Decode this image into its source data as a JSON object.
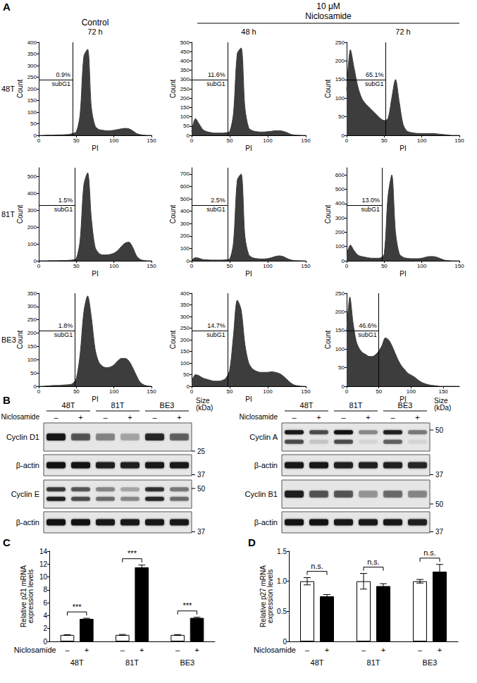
{
  "figure": {
    "panels": [
      "A",
      "B",
      "C",
      "D"
    ],
    "control_header": "Control",
    "dose_header": "10 μM",
    "treatment_header": "Niclosamide",
    "time_headers": [
      "72 h",
      "48 h",
      "72 h"
    ],
    "row_labels": [
      "48T",
      "81T",
      "BE3"
    ]
  },
  "chart_data": [
    {
      "type": "area",
      "x_label": "PI",
      "y_label": "Count",
      "color": "#3d3d3d",
      "gate_x": 45,
      "annotations": [
        "0.9%",
        "subG1"
      ],
      "x": [
        0,
        5,
        10,
        15,
        20,
        25,
        30,
        35,
        40,
        45,
        50,
        55,
        60,
        65,
        70,
        75,
        80,
        85,
        90,
        95,
        100,
        105,
        110,
        115,
        120,
        125,
        130,
        135,
        140,
        145,
        150
      ],
      "values": [
        0,
        0,
        1,
        1,
        1,
        2,
        2,
        3,
        4,
        8,
        15,
        90,
        340,
        370,
        120,
        40,
        25,
        22,
        20,
        20,
        22,
        25,
        28,
        30,
        28,
        20,
        8,
        3,
        1,
        0,
        0
      ],
      "xlim": [
        0,
        150
      ],
      "xticks": [
        0,
        50,
        100,
        150
      ],
      "ylim": [
        0,
        400
      ],
      "yticks": [
        0,
        50,
        100,
        150,
        200,
        250,
        300,
        350,
        400
      ]
    },
    {
      "type": "area",
      "x_label": "PI",
      "y_label": "Count",
      "color": "#3d3d3d",
      "gate_x": 47,
      "annotations": [
        "11.6%",
        "subG1"
      ],
      "x": [
        0,
        5,
        10,
        15,
        20,
        25,
        30,
        35,
        40,
        45,
        50,
        55,
        60,
        65,
        70,
        75,
        80,
        85,
        90,
        95,
        100,
        105,
        110,
        115,
        120,
        125,
        130,
        135,
        140,
        145,
        150
      ],
      "values": [
        20,
        90,
        60,
        30,
        20,
        15,
        12,
        12,
        12,
        14,
        20,
        120,
        440,
        470,
        150,
        40,
        25,
        20,
        18,
        18,
        20,
        22,
        25,
        25,
        22,
        15,
        6,
        2,
        1,
        0,
        0
      ],
      "xlim": [
        0,
        150
      ],
      "xticks": [
        0,
        50,
        100,
        150
      ],
      "ylim": [
        0,
        500
      ],
      "yticks": [
        0,
        50,
        100,
        150,
        200,
        250,
        300,
        350,
        400,
        450,
        500
      ]
    },
    {
      "type": "area",
      "x_label": "PI",
      "y_label": "Count",
      "color": "#3d3d3d",
      "gate_x": 52,
      "annotations": [
        "65.1%",
        "subG1"
      ],
      "x": [
        0,
        5,
        10,
        15,
        20,
        25,
        30,
        35,
        40,
        45,
        50,
        55,
        60,
        65,
        70,
        75,
        80,
        85,
        90,
        95,
        100,
        105,
        110,
        115,
        120,
        125,
        130,
        135,
        140,
        145,
        150
      ],
      "values": [
        120,
        230,
        180,
        130,
        100,
        85,
        75,
        65,
        55,
        45,
        40,
        45,
        100,
        150,
        90,
        30,
        12,
        8,
        6,
        5,
        5,
        5,
        5,
        5,
        4,
        3,
        2,
        1,
        0,
        0,
        0
      ],
      "xlim": [
        0,
        150
      ],
      "xticks": [
        0,
        50,
        100,
        150
      ],
      "ylim": [
        0,
        250
      ],
      "yticks": [
        0,
        50,
        100,
        150,
        200,
        250
      ]
    },
    {
      "type": "area",
      "x_label": "PI",
      "y_label": "Count",
      "color": "#3d3d3d",
      "gate_x": 48,
      "annotations": [
        "1.5%",
        "subG1"
      ],
      "x": [
        0,
        5,
        10,
        15,
        20,
        25,
        30,
        35,
        40,
        45,
        50,
        55,
        60,
        65,
        70,
        75,
        80,
        85,
        90,
        95,
        100,
        105,
        110,
        115,
        120,
        125,
        130,
        135,
        140,
        145,
        150
      ],
      "values": [
        0,
        0,
        0,
        1,
        1,
        1,
        2,
        2,
        3,
        5,
        15,
        120,
        450,
        520,
        250,
        80,
        45,
        35,
        35,
        38,
        45,
        60,
        85,
        105,
        110,
        80,
        30,
        8,
        2,
        0,
        0
      ],
      "xlim": [
        0,
        150
      ],
      "xticks": [
        0,
        50,
        100,
        150
      ],
      "ylim": [
        0,
        550
      ],
      "yticks": [
        0,
        100,
        200,
        300,
        400,
        500
      ]
    },
    {
      "type": "area",
      "x_label": "PI",
      "y_label": "Count",
      "color": "#3d3d3d",
      "gate_x": 47,
      "annotations": [
        "2.5%",
        "subG1"
      ],
      "x": [
        0,
        5,
        10,
        15,
        20,
        25,
        30,
        35,
        40,
        45,
        50,
        55,
        60,
        65,
        70,
        75,
        80,
        85,
        90,
        95,
        100,
        105,
        110,
        115,
        120,
        125,
        130,
        135,
        140,
        145,
        150
      ],
      "values": [
        5,
        25,
        20,
        10,
        8,
        6,
        6,
        6,
        6,
        8,
        15,
        150,
        650,
        700,
        200,
        50,
        25,
        18,
        15,
        15,
        18,
        25,
        35,
        40,
        35,
        20,
        8,
        2,
        1,
        0,
        0
      ],
      "xlim": [
        0,
        150
      ],
      "xticks": [
        0,
        50,
        100,
        150
      ],
      "ylim": [
        0,
        750
      ],
      "yticks": [
        0,
        100,
        200,
        300,
        400,
        500,
        600,
        700
      ]
    },
    {
      "type": "area",
      "x_label": "PI",
      "y_label": "Count",
      "color": "#3d3d3d",
      "gate_x": 47,
      "annotations": [
        "13.0%",
        "subG1"
      ],
      "x": [
        0,
        5,
        10,
        15,
        20,
        25,
        30,
        35,
        40,
        45,
        50,
        55,
        60,
        65,
        70,
        75,
        80,
        85,
        90,
        95,
        100,
        105,
        110,
        115,
        120,
        125,
        130,
        135,
        140,
        145,
        150
      ],
      "values": [
        40,
        110,
        70,
        40,
        30,
        25,
        20,
        18,
        18,
        20,
        50,
        450,
        600,
        200,
        50,
        25,
        18,
        15,
        15,
        15,
        18,
        25,
        30,
        30,
        25,
        15,
        5,
        2,
        0,
        0,
        0
      ],
      "xlim": [
        0,
        150
      ],
      "xticks": [
        0,
        50,
        100,
        150
      ],
      "ylim": [
        0,
        650
      ],
      "yticks": [
        0,
        100,
        200,
        300,
        400,
        500,
        600
      ]
    },
    {
      "type": "area",
      "x_label": "PI",
      "y_label": "Count",
      "color": "#3d3d3d",
      "gate_x": 48,
      "annotations": [
        "1.8%",
        "subG1"
      ],
      "x": [
        0,
        5,
        10,
        15,
        20,
        25,
        30,
        35,
        40,
        45,
        50,
        55,
        60,
        65,
        70,
        75,
        80,
        85,
        90,
        95,
        100,
        105,
        110,
        115,
        120,
        125,
        130,
        135,
        140,
        145,
        150
      ],
      "values": [
        0,
        0,
        1,
        2,
        3,
        3,
        4,
        5,
        6,
        10,
        30,
        120,
        280,
        340,
        260,
        140,
        90,
        75,
        70,
        72,
        80,
        95,
        105,
        105,
        95,
        70,
        40,
        15,
        5,
        1,
        0
      ],
      "xlim": [
        0,
        150
      ],
      "xticks": [
        0,
        50,
        100,
        150
      ],
      "ylim": [
        0,
        350
      ],
      "yticks": [
        0,
        50,
        100,
        150,
        200,
        250,
        300,
        350
      ]
    },
    {
      "type": "area",
      "x_label": "PI",
      "y_label": "Count",
      "color": "#3d3d3d",
      "gate_x": 47,
      "annotations": [
        "14.7%",
        "subG1"
      ],
      "x": [
        0,
        5,
        10,
        15,
        20,
        25,
        30,
        35,
        40,
        45,
        50,
        55,
        60,
        65,
        70,
        75,
        80,
        85,
        90,
        95,
        100,
        105,
        110,
        115,
        120,
        125,
        130,
        135,
        140,
        145,
        150
      ],
      "values": [
        20,
        50,
        45,
        35,
        30,
        25,
        22,
        22,
        25,
        35,
        70,
        220,
        370,
        330,
        180,
        100,
        75,
        65,
        60,
        60,
        60,
        62,
        60,
        55,
        45,
        30,
        15,
        5,
        2,
        0,
        0
      ],
      "xlim": [
        0,
        150
      ],
      "xticks": [
        0,
        50,
        100,
        150
      ],
      "ylim": [
        0,
        400
      ],
      "yticks": [
        0,
        50,
        100,
        150,
        200,
        250,
        300,
        350,
        400
      ]
    },
    {
      "type": "area",
      "x_label": "PI",
      "y_label": "Count",
      "color": "#3d3d3d",
      "gate_x": 50,
      "annotations": [
        "46.6%",
        "subG1"
      ],
      "x": [
        0,
        5,
        10,
        15,
        20,
        25,
        30,
        35,
        40,
        45,
        50,
        55,
        60,
        65,
        70,
        75,
        80,
        85,
        90,
        95,
        100,
        105,
        110,
        115,
        120,
        125,
        130,
        135,
        140,
        145,
        150,
        155,
        160,
        165,
        170,
        175
      ],
      "values": [
        150,
        240,
        170,
        120,
        100,
        90,
        85,
        80,
        80,
        85,
        95,
        110,
        130,
        125,
        110,
        90,
        70,
        55,
        45,
        35,
        30,
        25,
        18,
        12,
        8,
        5,
        3,
        2,
        1,
        0,
        0,
        0,
        0,
        0,
        0,
        0
      ],
      "xlim": [
        0,
        175
      ],
      "xticks": [
        0,
        50,
        100,
        150
      ],
      "ylim": [
        0,
        250
      ],
      "yticks": [
        0,
        50,
        100,
        150,
        200,
        250
      ]
    },
    {
      "type": "bar",
      "y_label": "Relative p21 mRNA\nexpression levels",
      "x_row_label": "Niclosamide",
      "categories": [
        "48T",
        "81T",
        "BE3"
      ],
      "series": [
        {
          "name": "–",
          "color": "#ffffff",
          "values": [
            1,
            1,
            1
          ],
          "errors": [
            0.03,
            0.08,
            0.06
          ]
        },
        {
          "name": "+",
          "color": "#000000",
          "values": [
            3.5,
            11.5,
            3.65
          ],
          "errors": [
            0.1,
            0.35,
            0.1
          ]
        }
      ],
      "annotations": [
        "***",
        "***",
        "***"
      ],
      "ylim": [
        0,
        14
      ],
      "yticks": [
        0,
        2,
        4,
        6,
        8,
        10,
        12,
        14
      ]
    },
    {
      "type": "bar",
      "y_label": "Relative p27 mRNA\nexpression levels",
      "x_row_label": "Niclosamide",
      "categories": [
        "48T",
        "81T",
        "BE3"
      ],
      "series": [
        {
          "name": "–",
          "color": "#ffffff",
          "values": [
            1,
            1,
            1
          ],
          "errors": [
            0.06,
            0.13,
            0.03
          ]
        },
        {
          "name": "+",
          "color": "#000000",
          "values": [
            0.75,
            0.92,
            1.16
          ],
          "errors": [
            0.03,
            0.04,
            0.12
          ]
        }
      ],
      "annotations": [
        "n.s.",
        "n.s.",
        "n.s."
      ],
      "ylim": [
        0,
        1.5
      ],
      "yticks": [
        0,
        0.5,
        {
          "value": 1,
          "label": "1.0"
        },
        1.5
      ]
    }
  ],
  "blots": [
    {
      "cell_lines": [
        "48T",
        "81T",
        "BE3"
      ],
      "treatments": [
        "–",
        "+"
      ],
      "row_label": "Niclosamide",
      "size_label": "Size (kDa)",
      "rows": [
        {
          "label": "Cyclin D1",
          "size_marker": 25,
          "bands": [
            [
              0.9,
              0.55,
              0.35,
              0.2,
              0.8,
              0.5
            ]
          ]
        },
        {
          "label": "β-actin",
          "size_marker": 37,
          "bands": [
            [
              0.95,
              0.95,
              0.85,
              0.85,
              0.9,
              0.9
            ]
          ]
        },
        {
          "label": "Cyclin E",
          "size_marker": 50,
          "bands": [
            [
              0.7,
              0.55,
              0.35,
              0.2,
              0.75,
              0.4
            ],
            [
              0.85,
              0.6,
              0.45,
              0.3,
              0.8,
              0.45
            ]
          ]
        },
        {
          "label": "β-actin",
          "size_marker": 37,
          "bands": [
            [
              0.95,
              0.95,
              0.9,
              0.9,
              0.9,
              0.9
            ]
          ]
        }
      ]
    },
    {
      "cell_lines": [
        "48T",
        "81T",
        "BE3"
      ],
      "treatments": [
        "–",
        "+"
      ],
      "row_label": "Niclosamide",
      "size_label": "Size (kDa)",
      "rows": [
        {
          "label": "Cyclin A",
          "size_marker": 50,
          "bands": [
            [
              0.9,
              0.6,
              0.95,
              0.3,
              0.85,
              0.4
            ],
            [
              0.6,
              0.1,
              0.6,
              0.05,
              0.5,
              0.05
            ]
          ]
        },
        {
          "label": "β-actin",
          "size_marker": 37,
          "bands": [
            [
              0.9,
              0.9,
              0.85,
              0.85,
              0.85,
              0.8
            ]
          ]
        },
        {
          "label": "Cyclin B1",
          "size_marker": 50,
          "bands": [
            [
              0.85,
              0.55,
              0.55,
              0.25,
              0.45,
              0.3
            ]
          ]
        },
        {
          "label": "β-actin",
          "size_marker": 37,
          "bands": [
            [
              0.95,
              0.95,
              0.9,
              0.9,
              0.9,
              0.85
            ]
          ]
        }
      ]
    }
  ]
}
